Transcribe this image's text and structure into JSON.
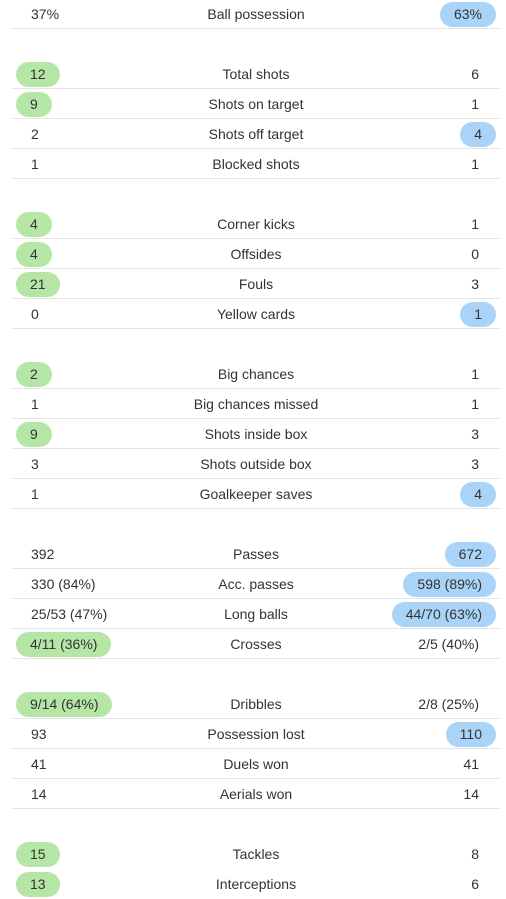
{
  "colors": {
    "highlight_left": "#b5e6a6",
    "highlight_right": "#a9d4f8",
    "divider": "#e4e4e4",
    "text": "#333333"
  },
  "stats": [
    {
      "label": "Ball possession",
      "left": "37%",
      "right": "63%",
      "highlight": "right"
    },
    {
      "label": "Total shots",
      "left": "12",
      "right": "6",
      "highlight": "left"
    },
    {
      "label": "Shots on target",
      "left": "9",
      "right": "1",
      "highlight": "left"
    },
    {
      "label": "Shots off target",
      "left": "2",
      "right": "4",
      "highlight": "right"
    },
    {
      "label": "Blocked shots",
      "left": "1",
      "right": "1",
      "highlight": "none"
    },
    {
      "label": "Corner kicks",
      "left": "4",
      "right": "1",
      "highlight": "left"
    },
    {
      "label": "Offsides",
      "left": "4",
      "right": "0",
      "highlight": "left"
    },
    {
      "label": "Fouls",
      "left": "21",
      "right": "3",
      "highlight": "left"
    },
    {
      "label": "Yellow cards",
      "left": "0",
      "right": "1",
      "highlight": "right"
    },
    {
      "label": "Big chances",
      "left": "2",
      "right": "1",
      "highlight": "left"
    },
    {
      "label": "Big chances missed",
      "left": "1",
      "right": "1",
      "highlight": "none"
    },
    {
      "label": "Shots inside box",
      "left": "9",
      "right": "3",
      "highlight": "left"
    },
    {
      "label": "Shots outside box",
      "left": "3",
      "right": "3",
      "highlight": "none"
    },
    {
      "label": "Goalkeeper saves",
      "left": "1",
      "right": "4",
      "highlight": "right"
    },
    {
      "label": "Passes",
      "left": "392",
      "right": "672",
      "highlight": "right"
    },
    {
      "label": "Acc. passes",
      "left": "330 (84%)",
      "right": "598 (89%)",
      "highlight": "right"
    },
    {
      "label": "Long balls",
      "left": "25/53 (47%)",
      "right": "44/70 (63%)",
      "highlight": "right"
    },
    {
      "label": "Crosses",
      "left": "4/11 (36%)",
      "right": "2/5 (40%)",
      "highlight": "left"
    },
    {
      "label": "Dribbles",
      "left": "9/14 (64%)",
      "right": "2/8 (25%)",
      "highlight": "left"
    },
    {
      "label": "Possession lost",
      "left": "93",
      "right": "110",
      "highlight": "right"
    },
    {
      "label": "Duels won",
      "left": "41",
      "right": "41",
      "highlight": "none"
    },
    {
      "label": "Aerials won",
      "left": "14",
      "right": "14",
      "highlight": "none"
    },
    {
      "label": "Tackles",
      "left": "15",
      "right": "8",
      "highlight": "left"
    },
    {
      "label": "Interceptions",
      "left": "13",
      "right": "6",
      "highlight": "left"
    }
  ]
}
